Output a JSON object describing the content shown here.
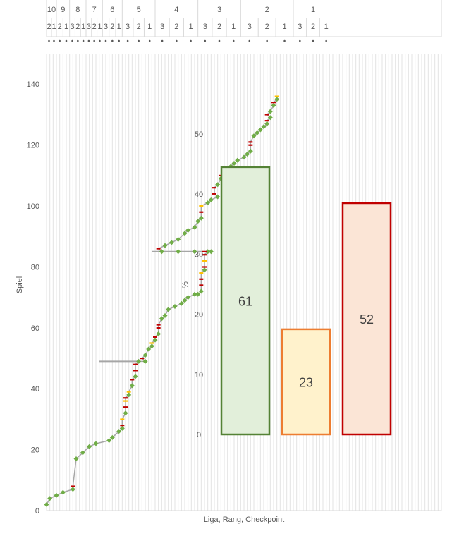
{
  "chart_data": [
    {
      "type": "scatter",
      "title": "",
      "xlabel": "Liga, Rang, Checkpoint",
      "ylabel": "Spiel",
      "ylim": [
        0,
        150
      ],
      "yticks": [
        0,
        20,
        40,
        60,
        80,
        100,
        120,
        140
      ],
      "x_axis_position": "top",
      "grid": "vertical",
      "leagues": [
        {
          "label": "10",
          "ranks": [
            "2",
            "1"
          ]
        },
        {
          "label": "9",
          "ranks": [
            "2",
            "1"
          ]
        },
        {
          "label": "8",
          "ranks": [
            "3",
            "2",
            "1"
          ]
        },
        {
          "label": "7",
          "ranks": [
            "3",
            "2",
            "1"
          ]
        },
        {
          "label": "6",
          "ranks": [
            "3",
            "2",
            "1"
          ]
        },
        {
          "label": "5",
          "ranks": [
            "3",
            "2",
            "1"
          ]
        },
        {
          "label": "4",
          "ranks": [
            "3",
            "2",
            "1"
          ]
        },
        {
          "label": "3",
          "ranks": [
            "3",
            "2",
            "1"
          ]
        },
        {
          "label": "2",
          "ranks": [
            "3",
            "2",
            "1"
          ]
        },
        {
          "label": "1",
          "ranks": [
            "3",
            "2",
            "1"
          ]
        }
      ],
      "progress": [
        [
          0,
          2
        ],
        [
          1,
          4
        ],
        [
          3,
          5
        ],
        [
          5,
          6
        ],
        [
          8,
          7
        ],
        [
          8,
          8
        ],
        [
          9,
          17
        ],
        [
          11,
          19
        ],
        [
          13,
          21
        ],
        [
          15,
          22
        ],
        [
          19,
          23
        ],
        [
          20,
          24
        ],
        [
          22,
          26
        ],
        [
          23,
          27
        ],
        [
          23,
          28
        ],
        [
          23,
          30
        ],
        [
          24,
          32
        ],
        [
          24,
          34
        ],
        [
          24,
          36
        ],
        [
          24,
          37
        ],
        [
          25,
          38
        ],
        [
          25,
          39
        ],
        [
          26,
          41
        ],
        [
          26,
          43
        ],
        [
          27,
          44
        ],
        [
          27,
          46
        ],
        [
          27,
          48
        ],
        [
          28,
          49
        ],
        [
          30,
          49
        ],
        [
          29,
          50
        ],
        [
          30,
          51
        ],
        [
          31,
          53
        ],
        [
          32,
          54
        ],
        [
          32,
          55
        ],
        [
          33,
          56
        ],
        [
          33,
          57
        ],
        [
          34,
          58
        ],
        [
          34,
          60
        ],
        [
          34,
          61
        ],
        [
          35,
          63
        ],
        [
          36,
          64
        ],
        [
          37,
          66
        ],
        [
          39,
          67
        ],
        [
          41,
          68
        ],
        [
          42,
          69
        ],
        [
          43,
          70
        ],
        [
          45,
          71
        ],
        [
          46,
          71
        ],
        [
          47,
          72
        ],
        [
          47,
          74
        ],
        [
          47,
          76
        ],
        [
          47,
          78
        ],
        [
          48,
          79
        ],
        [
          48,
          80
        ],
        [
          48,
          82
        ],
        [
          48,
          84
        ],
        [
          49,
          85
        ],
        [
          50,
          85
        ],
        [
          48,
          85
        ],
        [
          45,
          85
        ],
        [
          40,
          85
        ],
        [
          35,
          85
        ],
        [
          34,
          86
        ],
        [
          36,
          87
        ],
        [
          38,
          88
        ],
        [
          40,
          89
        ],
        [
          42,
          91
        ],
        [
          43,
          92
        ],
        [
          45,
          93
        ],
        [
          46,
          95
        ],
        [
          47,
          96
        ],
        [
          47,
          98
        ],
        [
          47,
          100
        ],
        [
          49,
          101
        ],
        [
          50,
          102
        ],
        [
          52,
          103
        ],
        [
          51,
          104
        ],
        [
          51,
          106
        ],
        [
          52,
          107
        ],
        [
          53,
          109
        ],
        [
          53,
          110
        ],
        [
          55,
          111
        ],
        [
          56,
          113
        ],
        [
          57,
          114
        ],
        [
          58,
          115
        ],
        [
          60,
          116
        ],
        [
          61,
          117
        ],
        [
          62,
          118
        ],
        [
          62,
          120
        ],
        [
          62,
          121
        ],
        [
          63,
          123
        ],
        [
          64,
          124
        ],
        [
          65,
          125
        ],
        [
          66,
          126
        ],
        [
          67,
          127
        ],
        [
          67,
          128
        ],
        [
          68,
          129
        ],
        [
          67,
          130
        ],
        [
          68,
          131
        ],
        [
          69,
          133
        ],
        [
          69,
          134
        ],
        [
          70,
          135
        ],
        [
          70,
          136
        ]
      ],
      "resets": [
        {
          "game": 49,
          "from": 28,
          "to": 16
        },
        {
          "game": 85,
          "from": 50,
          "to": 32
        }
      ]
    },
    {
      "type": "bar",
      "title": "",
      "xlabel": "",
      "ylabel": "%",
      "ylim": [
        0,
        60
      ],
      "yticks": [
        0,
        10,
        20,
        30,
        40,
        50
      ],
      "categories": [
        "",
        "",
        ""
      ],
      "values": [
        61,
        23,
        52
      ],
      "colors": {
        "green": {
          "fill": "#e2efda",
          "stroke": "#548235"
        },
        "orange": {
          "fill": "#fff2cc",
          "stroke": "#ed7d31"
        },
        "red": {
          "fill": "#fbe5d6",
          "stroke": "#c00000"
        }
      }
    }
  ]
}
